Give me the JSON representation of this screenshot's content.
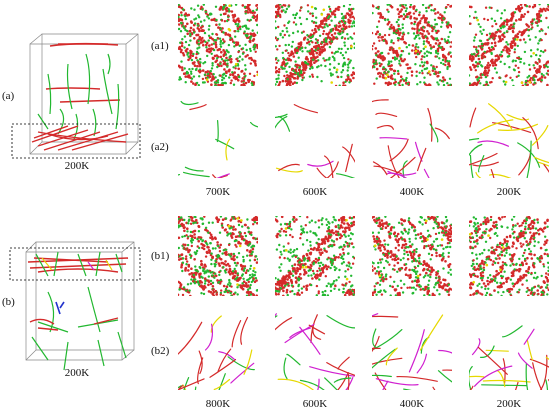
{
  "figure": {
    "part_a": {
      "label": "(a)",
      "cube_temperature": "200K",
      "row_labels": [
        "(a1)",
        "(a2)"
      ],
      "column_temperatures": [
        "700K",
        "600K",
        "400K",
        "200K"
      ]
    },
    "part_b": {
      "label": "(b)",
      "cube_temperature": "200K",
      "row_labels": [
        "(b1)",
        "(b2)"
      ],
      "column_temperatures": [
        "800K",
        "600K",
        "400K",
        "200K"
      ]
    },
    "colors": {
      "green": "#22b830",
      "red": "#d42a2a",
      "yellow": "#e6d800",
      "magenta": "#d020d0",
      "blue": "#2233cc"
    }
  }
}
